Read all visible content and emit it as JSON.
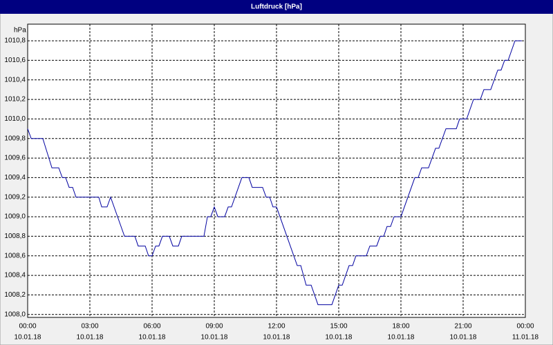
{
  "chart_data": {
    "type": "line",
    "title": "Luftdruck [hPa]",
    "y_unit": "hPa",
    "x": [
      0,
      0.17,
      0.73,
      1.17,
      1.5,
      1.67,
      1.83,
      2.0,
      2.17,
      2.33,
      3.43,
      3.57,
      3.83,
      4.0,
      4.67,
      5.17,
      5.33,
      5.67,
      5.83,
      6.0,
      6.17,
      6.33,
      6.5,
      6.83,
      7.0,
      7.27,
      7.43,
      8.5,
      8.67,
      8.83,
      9.0,
      9.17,
      9.5,
      9.67,
      9.83,
      10.33,
      10.67,
      10.83,
      11.33,
      11.5,
      11.67,
      11.83,
      12.0,
      13.0,
      13.17,
      13.43,
      13.67,
      14.0,
      14.67,
      15.0,
      15.17,
      15.5,
      15.67,
      15.83,
      16.33,
      16.5,
      16.83,
      17.0,
      17.17,
      17.33,
      17.5,
      17.67,
      18.0,
      18.67,
      18.83,
      19.0,
      19.33,
      19.67,
      19.83,
      20.17,
      20.67,
      20.83,
      21.17,
      21.5,
      21.83,
      22.0,
      22.33,
      22.67,
      22.83,
      23.0,
      23.17,
      23.5,
      23.83
    ],
    "series": [
      {
        "name": "Luftdruck",
        "color": "#0000a0",
        "values": [
          1009.9,
          1009.8,
          1009.8,
          1009.5,
          1009.5,
          1009.4,
          1009.4,
          1009.3,
          1009.3,
          1009.2,
          1009.2,
          1009.1,
          1009.1,
          1009.2,
          1008.8,
          1008.8,
          1008.7,
          1008.7,
          1008.6,
          1008.6,
          1008.7,
          1008.7,
          1008.8,
          1008.8,
          1008.7,
          1008.7,
          1008.8,
          1008.8,
          1009.0,
          1009.0,
          1009.1,
          1009.0,
          1009.0,
          1009.1,
          1009.1,
          1009.4,
          1009.4,
          1009.3,
          1009.3,
          1009.2,
          1009.2,
          1009.1,
          1009.1,
          1008.5,
          1008.5,
          1008.3,
          1008.3,
          1008.1,
          1008.1,
          1008.3,
          1008.3,
          1008.5,
          1008.5,
          1008.6,
          1008.6,
          1008.7,
          1008.7,
          1008.8,
          1008.8,
          1008.9,
          1008.9,
          1009.0,
          1009.0,
          1009.4,
          1009.4,
          1009.5,
          1009.5,
          1009.7,
          1009.7,
          1009.9,
          1009.9,
          1010.0,
          1010.0,
          1010.2,
          1010.2,
          1010.3,
          1010.3,
          1010.5,
          1010.5,
          1010.6,
          1010.6,
          1010.8,
          1010.8
        ]
      }
    ],
    "xlim": [
      0,
      24
    ],
    "ylim": [
      1007.97,
      1010.97
    ],
    "xticks": [
      {
        "value": 0,
        "label": "00:00"
      },
      {
        "value": 3,
        "label": "03:00"
      },
      {
        "value": 6,
        "label": "06:00"
      },
      {
        "value": 9,
        "label": "09:00"
      },
      {
        "value": 12,
        "label": "12:00"
      },
      {
        "value": 15,
        "label": "15:00"
      },
      {
        "value": 18,
        "label": "18:00"
      },
      {
        "value": 21,
        "label": "21:00"
      },
      {
        "value": 24,
        "label": "00:00"
      }
    ],
    "xtick_dates": [
      "10.01.18",
      "10.01.18",
      "10.01.18",
      "10.01.18",
      "10.01.18",
      "10.01.18",
      "10.01.18",
      "10.01.18",
      "11.01.18"
    ],
    "yticks": [
      {
        "value": 1008.0,
        "label": "1008,0"
      },
      {
        "value": 1008.2,
        "label": "1008,2"
      },
      {
        "value": 1008.4,
        "label": "1008,4"
      },
      {
        "value": 1008.6,
        "label": "1008,6"
      },
      {
        "value": 1008.8,
        "label": "1008,8"
      },
      {
        "value": 1009.0,
        "label": "1009,0"
      },
      {
        "value": 1009.2,
        "label": "1009,2"
      },
      {
        "value": 1009.4,
        "label": "1009,4"
      },
      {
        "value": 1009.6,
        "label": "1009,6"
      },
      {
        "value": 1009.8,
        "label": "1009,8"
      },
      {
        "value": 1010.0,
        "label": "1010,0"
      },
      {
        "value": 1010.2,
        "label": "1010,2"
      },
      {
        "value": 1010.4,
        "label": "1010,4"
      },
      {
        "value": 1010.6,
        "label": "1010,6"
      },
      {
        "value": 1010.8,
        "label": "1010,8"
      }
    ],
    "grid": true
  }
}
